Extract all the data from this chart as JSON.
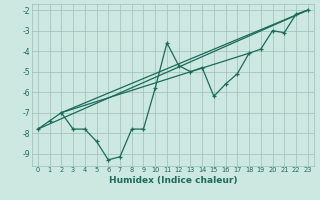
{
  "xlabel": "Humidex (Indice chaleur)",
  "bg_color": "#cce8e0",
  "grid_color": "#9bbfb8",
  "line_color": "#1a6b5a",
  "xlim": [
    -0.5,
    23.5
  ],
  "ylim": [
    -9.6,
    -1.7
  ],
  "yticks": [
    -9,
    -8,
    -7,
    -6,
    -5,
    -4,
    -3,
    -2
  ],
  "xticks": [
    0,
    1,
    2,
    3,
    4,
    5,
    6,
    7,
    8,
    9,
    10,
    11,
    12,
    13,
    14,
    15,
    16,
    17,
    18,
    19,
    20,
    21,
    22,
    23
  ],
  "series1_x": [
    0,
    1,
    2,
    3,
    4,
    5,
    6,
    7,
    8,
    9,
    10,
    11,
    12,
    13,
    14,
    15,
    16,
    17,
    18,
    19,
    20,
    21,
    22,
    23
  ],
  "series1_y": [
    -7.8,
    -7.4,
    -7.0,
    -7.8,
    -7.8,
    -8.4,
    -9.3,
    -9.15,
    -7.8,
    -7.8,
    -5.8,
    -3.6,
    -4.7,
    -5.0,
    -4.8,
    -6.2,
    -5.6,
    -5.1,
    -4.1,
    -3.9,
    -3.0,
    -3.1,
    -2.2,
    -2.0
  ],
  "line1_x": [
    0,
    23
  ],
  "line1_y": [
    -7.8,
    -2.0
  ],
  "line2_x": [
    2,
    23
  ],
  "line2_y": [
    -7.0,
    -2.0
  ],
  "line3_x": [
    2,
    18
  ],
  "line3_y": [
    -7.0,
    -4.1
  ]
}
